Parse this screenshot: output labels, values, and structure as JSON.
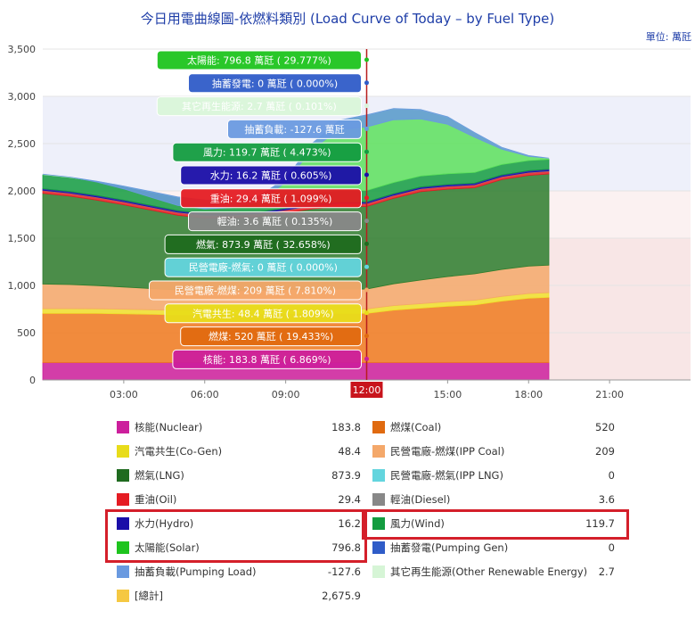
{
  "page": {
    "title": "今日用電曲線圖-依燃料類別 (Load Curve of Today – by Fuel Type)",
    "unit": "單位: 萬瓩"
  },
  "chart_data": {
    "type": "area",
    "stacked": true,
    "title": "今日用電曲線圖-依燃料類別 (Load Curve of Today – by Fuel Type)",
    "xlabel": "",
    "ylabel": "",
    "unit": "單位: 萬瓩",
    "xlim": [
      0,
      24
    ],
    "ylim": [
      0,
      3500
    ],
    "y_ticks": [
      "0",
      "500",
      "1,000",
      "1,500",
      "2,000",
      "2,500",
      "3,000",
      "3,500"
    ],
    "x_ticks": [
      "03:00",
      "06:00",
      "09:00",
      "12:00",
      "15:00",
      "18:00",
      "21:00"
    ],
    "cursor_time": "12:00",
    "grid": true,
    "time_points_hours": [
      0,
      1,
      2,
      3,
      4,
      5,
      6,
      7,
      8,
      9,
      10,
      11,
      12,
      13,
      14,
      15,
      16,
      17,
      18,
      18.75
    ],
    "series": [
      {
        "name": "核能(Nuclear)",
        "color": "#cc1f9c",
        "values": [
          184,
          184,
          184,
          184,
          184,
          184,
          184,
          184,
          184,
          184,
          184,
          184,
          184,
          184,
          184,
          184,
          184,
          184,
          184,
          184
        ]
      },
      {
        "name": "燃煤(Coal)",
        "color": "#f07a1e",
        "values": [
          520,
          520,
          520,
          515,
          510,
          505,
          505,
          510,
          515,
          520,
          520,
          520,
          520,
          555,
          575,
          595,
          610,
          650,
          680,
          690
        ]
      },
      {
        "name": "汽電共生(Co-Gen)",
        "color": "#f0e02a",
        "values": [
          50,
          50,
          49,
          49,
          48,
          48,
          48,
          48,
          48,
          48,
          48,
          48,
          48,
          48,
          48,
          49,
          49,
          50,
          50,
          50
        ]
      },
      {
        "name": "民營電廠-燃煤(IPP Coal)",
        "color": "#f4a86a",
        "values": [
          260,
          255,
          245,
          235,
          225,
          215,
          205,
          200,
          200,
          205,
          208,
          209,
          209,
          230,
          250,
          265,
          280,
          285,
          290,
          290
        ]
      },
      {
        "name": "民營電廠-燃氣(IPP LNG)",
        "color": "#63d5de",
        "values": [
          0,
          0,
          0,
          0,
          0,
          0,
          0,
          0,
          0,
          0,
          0,
          0,
          0,
          0,
          0,
          0,
          0,
          0,
          0,
          0
        ]
      },
      {
        "name": "燃氣(LNG)",
        "color": "#2d7d2d",
        "values": [
          960,
          935,
          905,
          870,
          830,
          790,
          770,
          770,
          780,
          810,
          850,
          874,
          874,
          905,
          935,
          925,
          910,
          950,
          960,
          965
        ]
      },
      {
        "name": "重油(Oil)",
        "color": "#e51c23",
        "values": [
          29,
          29,
          29,
          29,
          29,
          29,
          29,
          29,
          29,
          29,
          29,
          29,
          29,
          29,
          29,
          29,
          29,
          29,
          29,
          29
        ]
      },
      {
        "name": "輕油(Diesel)",
        "color": "#888888",
        "values": [
          4,
          4,
          4,
          4,
          4,
          4,
          4,
          4,
          4,
          4,
          4,
          4,
          4,
          4,
          4,
          4,
          4,
          4,
          4,
          4
        ]
      },
      {
        "name": "水力(Hydro)",
        "color": "#1a0ea8",
        "values": [
          16,
          16,
          16,
          16,
          16,
          16,
          16,
          16,
          16,
          16,
          16,
          16,
          16,
          16,
          16,
          16,
          16,
          16,
          16,
          16
        ]
      },
      {
        "name": "風力(Wind)",
        "color": "#139c40",
        "values": [
          150,
          150,
          148,
          146,
          144,
          142,
          140,
          138,
          135,
          130,
          125,
          120,
          120,
          118,
          116,
          114,
          112,
          110,
          108,
          105
        ]
      },
      {
        "name": "太陽能(Solar)",
        "color": "#5ce05c",
        "values": [
          0,
          0,
          0,
          0,
          0,
          0,
          0,
          0,
          30,
          180,
          520,
          740,
          797,
          780,
          700,
          600,
          420,
          180,
          50,
          10
        ]
      },
      {
        "name": "抽蓄發電(Pumping Gen)",
        "color": "#2f5cc8",
        "values": [
          0,
          0,
          0,
          0,
          0,
          0,
          0,
          0,
          0,
          0,
          0,
          0,
          0,
          0,
          0,
          0,
          0,
          0,
          0,
          0
        ]
      },
      {
        "name": "其它再生能源(Other Renewable Energy)",
        "color": "#d6f5d6",
        "values": [
          3,
          3,
          3,
          3,
          3,
          3,
          3,
          3,
          3,
          3,
          3,
          3,
          3,
          3,
          3,
          3,
          3,
          3,
          3,
          3
        ]
      },
      {
        "name": "抽蓄負載(Pumping Load)",
        "color": "#6a9ae0",
        "values": [
          0,
          0,
          -10,
          -30,
          -60,
          -90,
          -95,
          -80,
          -60,
          -40,
          -60,
          -100,
          -128,
          -120,
          -100,
          -80,
          -50,
          -20,
          -10,
          0
        ]
      }
    ],
    "tooltips": [
      {
        "text": "太陽能: 796.8 萬瓩 ( 29.777%)",
        "bg": "#1ec41e",
        "fg": "#ffffff"
      },
      {
        "text": "抽蓄發電: 0 萬瓩 ( 0.000%)",
        "bg": "#2f5cc8",
        "fg": "#ffffff"
      },
      {
        "text": "其它再生能源: 2.7 萬瓩 ( 0.101%)",
        "bg": "#d9f5d9",
        "fg": "#ffffff"
      },
      {
        "text": "抽蓄負載: -127.6 萬瓩",
        "bg": "#6a9ae0",
        "fg": "#ffffff"
      },
      {
        "text": "風力: 119.7 萬瓩 ( 4.473%)",
        "bg": "#139c40",
        "fg": "#ffffff"
      },
      {
        "text": "水力: 16.2 萬瓩 ( 0.605%)",
        "bg": "#1a0ea8",
        "fg": "#ffffff"
      },
      {
        "text": "重油: 29.4 萬瓩 ( 1.099%)",
        "bg": "#e51c23",
        "fg": "#ffffff"
      },
      {
        "text": "輕油: 3.6 萬瓩 ( 0.135%)",
        "bg": "#888888",
        "fg": "#ffffff"
      },
      {
        "text": "燃氣: 873.9 萬瓩 ( 32.658%)",
        "bg": "#1f6b1f",
        "fg": "#ffffff"
      },
      {
        "text": "民營電廠-燃氣: 0 萬瓩 ( 0.000%)",
        "bg": "#63d5de",
        "fg": "#ffffff"
      },
      {
        "text": "民營電廠-燃煤: 209 萬瓩 ( 7.810%)",
        "bg": "#f4a86a",
        "fg": "#ffffff"
      },
      {
        "text": "汽電共生: 48.4 萬瓩 ( 1.809%)",
        "bg": "#e8dc1a",
        "fg": "#ffffff"
      },
      {
        "text": "燃煤: 520 萬瓩 ( 19.433%)",
        "bg": "#e06a10",
        "fg": "#ffffff"
      },
      {
        "text": "核能: 183.8 萬瓩 ( 6.869%)",
        "bg": "#cc1f9c",
        "fg": "#ffffff"
      }
    ]
  },
  "legend": [
    {
      "label": "核能(Nuclear)",
      "value": "183.8",
      "color": "#cc1f9c",
      "col": 0
    },
    {
      "label": "燃煤(Coal)",
      "value": "520",
      "color": "#e06a10",
      "col": 1
    },
    {
      "label": "汽電共生(Co-Gen)",
      "value": "48.4",
      "color": "#e8dc1a",
      "col": 0
    },
    {
      "label": "民營電廠-燃煤(IPP Coal)",
      "value": "209",
      "color": "#f4a86a",
      "col": 1
    },
    {
      "label": "燃氣(LNG)",
      "value": "873.9",
      "color": "#1f6b1f",
      "col": 0
    },
    {
      "label": "民營電廠-燃氣(IPP LNG)",
      "value": "0",
      "color": "#63d5de",
      "col": 1
    },
    {
      "label": "重油(Oil)",
      "value": "29.4",
      "color": "#e51c23",
      "col": 0
    },
    {
      "label": "輕油(Diesel)",
      "value": "3.6",
      "color": "#888888",
      "col": 1
    },
    {
      "label": "水力(Hydro)",
      "value": "16.2",
      "color": "#1a0ea8",
      "col": 0
    },
    {
      "label": "風力(Wind)",
      "value": "119.7",
      "color": "#139c40",
      "col": 1
    },
    {
      "label": "太陽能(Solar)",
      "value": "796.8",
      "color": "#1ec41e",
      "col": 0
    },
    {
      "label": "抽蓄發電(Pumping Gen)",
      "value": "0",
      "color": "#2f5cc8",
      "col": 1
    },
    {
      "label": "抽蓄負載(Pumping Load)",
      "value": "-127.6",
      "color": "#6a9ae0",
      "col": 0
    },
    {
      "label": "其它再生能源(Other Renewable Energy)",
      "value": "2.7",
      "color": "#d6f5d6",
      "col": 1
    },
    {
      "label": "[總計]",
      "value": "2,675.9",
      "color": "#f5c842",
      "col": 0
    }
  ],
  "highlight_color": "#d41f2a"
}
